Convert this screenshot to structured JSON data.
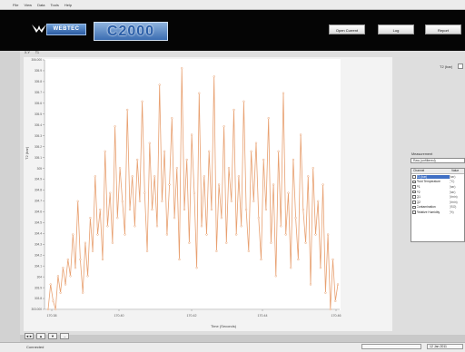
{
  "menubar": {
    "items": [
      "File",
      "View",
      "Data",
      "Tools",
      "Help"
    ]
  },
  "header": {
    "brand": "WEBTEC",
    "product": "C2000",
    "buttons": [
      "Open Current",
      "Log",
      "Report"
    ]
  },
  "tabs": [
    "X-Y",
    "T1"
  ],
  "plot": {
    "xlabel": "Time (Seconds)",
    "ylabel": "T2 (bar)",
    "zoom_buttons": [
      "◄►",
      "▲",
      "▼",
      "→"
    ]
  },
  "right_panel": {
    "checkbox_label": "T2 (bar)",
    "measurement_label": "Measurement",
    "measurement_value": "Raw (unfiltered)",
    "channel_headers": [
      "Channel",
      "Value"
    ],
    "channels": [
      {
        "name": "T2 (bar)",
        "unit": "(bar)"
      },
      {
        "name": "Fluid Temperature",
        "unit": "(°C)"
      },
      {
        "name": "P1",
        "unit": "(bar)"
      },
      {
        "name": "P2",
        "unit": "(bar)"
      },
      {
        "name": "Q1",
        "unit": "(l/min)"
      },
      {
        "name": "Q2",
        "unit": "(l/min)"
      },
      {
        "name": "Contamination",
        "unit": "(ISO)"
      },
      {
        "name": "Relative Humidity",
        "unit": "(%)"
      }
    ]
  },
  "status": {
    "left": "Connected",
    "right_box": "",
    "date": "12 Jan 2011"
  },
  "chart_data": {
    "type": "line",
    "xlabel": "Time (Seconds)",
    "ylabel": "T2 (bar)",
    "x_ticks": [
      "170.38",
      "170.40",
      "170.42",
      "170.44",
      "170.46"
    ],
    "y_ticks": [
      "306.000",
      "305.9",
      "305.8",
      "305.7",
      "305.6",
      "305.5",
      "305.4",
      "305.3",
      "305.2",
      "305.1",
      "305",
      "304.9",
      "304.8",
      "304.7",
      "304.6",
      "304.5",
      "304.4",
      "304.3",
      "304.2",
      "304.1",
      "304",
      "303.9",
      "303.8",
      "303.000"
    ],
    "ylim": [
      303.0,
      306.0
    ],
    "xlim": [
      170.38,
      170.46
    ],
    "series": [
      {
        "color": "#e8a070",
        "values": [
          303.0,
          303.3,
          303.1,
          303.0,
          303.4,
          303.2,
          303.5,
          303.3,
          303.6,
          303.4,
          303.9,
          303.5,
          304.3,
          303.6,
          303.2,
          303.8,
          303.4,
          304.1,
          303.7,
          304.6,
          303.9,
          304.2,
          303.6,
          304.9,
          304.0,
          304.4,
          303.8,
          305.2,
          304.1,
          304.7,
          304.3,
          303.9,
          305.4,
          304.2,
          304.6,
          304.0,
          304.8,
          304.3,
          305.5,
          304.4,
          303.7,
          305.0,
          304.2,
          304.6,
          304.0,
          305.7,
          304.3,
          304.9,
          303.9,
          304.5,
          305.3,
          304.1,
          304.7,
          303.6,
          305.9,
          304.2,
          304.8,
          303.8,
          305.1,
          304.4,
          303.5,
          305.6,
          304.0,
          304.6,
          303.9,
          304.9,
          304.2,
          305.8,
          303.7,
          304.5,
          304.1,
          305.2,
          303.8,
          304.7,
          304.3,
          305.4,
          303.9,
          304.6,
          304.0,
          305.5,
          304.2,
          303.7,
          304.9,
          304.3,
          305.0,
          304.1,
          303.6,
          304.8,
          304.2,
          305.3,
          303.8,
          304.5,
          303.4,
          304.9,
          304.0,
          305.6,
          303.9,
          304.4,
          303.5,
          304.8,
          304.1,
          303.6,
          305.1,
          304.2,
          303.8,
          304.6,
          303.3,
          304.7,
          303.9,
          304.3,
          303.5,
          304.5,
          303.2,
          303.9,
          303.0,
          303.6,
          303.1,
          303.3
        ]
      }
    ]
  }
}
